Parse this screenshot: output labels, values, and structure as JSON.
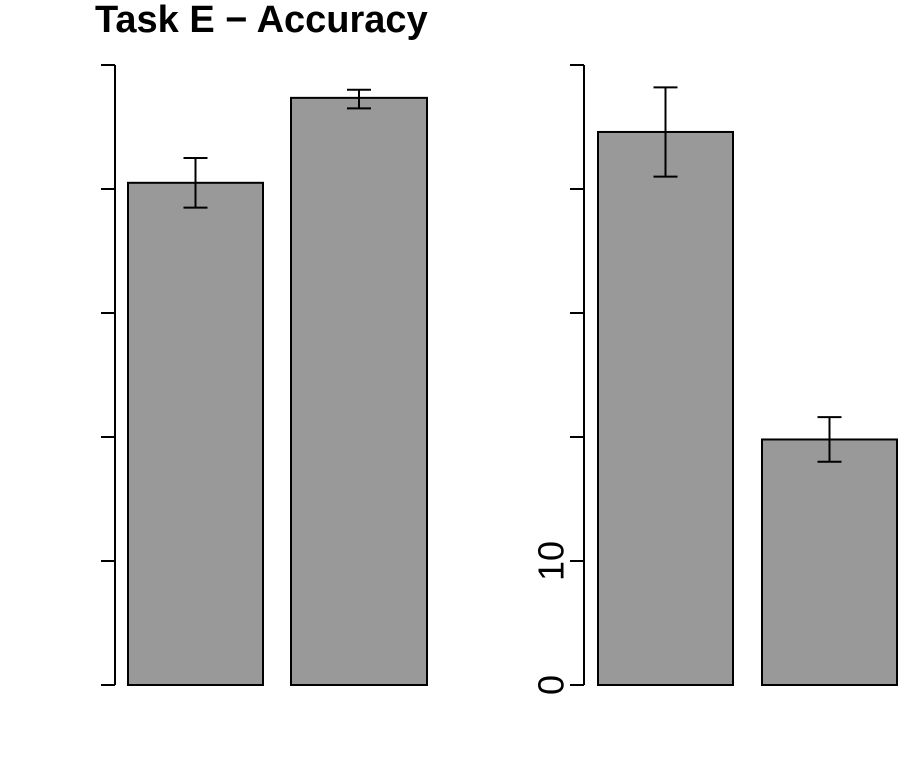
{
  "chart_data": [
    {
      "type": "bar",
      "title": "Task E − Accuracy",
      "categories": [
        "",
        ""
      ],
      "values": [
        0.81,
        0.947
      ],
      "error_bars": [
        [
          0.77,
          0.85
        ],
        [
          0.93,
          0.96
        ]
      ],
      "ylim": [
        0,
        1
      ],
      "yticks": [
        0,
        0.2,
        0.4,
        0.6,
        0.8,
        1.0
      ],
      "ytick_labels": [
        "",
        "",
        "",
        "",
        "",
        ""
      ],
      "bar_color": "#999999",
      "grid": false
    },
    {
      "type": "bar",
      "title": "",
      "categories": [
        "",
        ""
      ],
      "values": [
        44.6,
        19.8
      ],
      "error_bars": [
        [
          41.0,
          48.2
        ],
        [
          18.0,
          21.6
        ]
      ],
      "ylim": [
        0,
        50
      ],
      "yticks": [
        0,
        10,
        20,
        30,
        40,
        50
      ],
      "ytick_labels": [
        "0",
        "10",
        "",
        "",
        "",
        ""
      ],
      "bar_color": "#999999",
      "grid": false
    }
  ]
}
